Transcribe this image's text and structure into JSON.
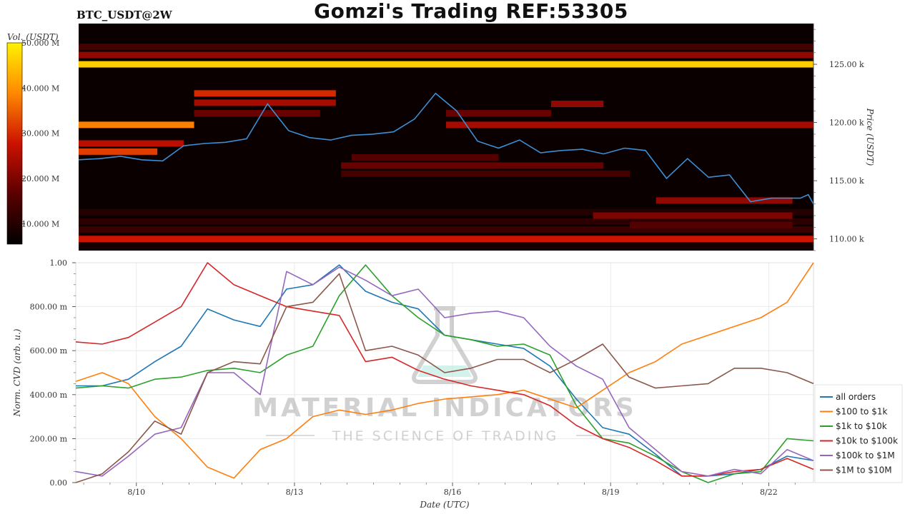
{
  "header": {
    "pair_label": "BTC_USDT@2W",
    "title": "Gomzi's Trading REF:53305"
  },
  "watermark": {
    "line1": "MATERIAL INDICATORS",
    "line2": "THE SCIENCE OF TRADING"
  },
  "colors": {
    "heatmap_bg": "#0a0000",
    "price_line": "#3b8fd6"
  },
  "chart_data": [
    {
      "type": "heatmap",
      "title": "",
      "colorbar": {
        "label": "Vol. (USDT)",
        "ticks": [
          {
            "value": 10,
            "label": "10.000 M"
          },
          {
            "value": 20,
            "label": "20.000 M"
          },
          {
            "value": 30,
            "label": "30.000 M"
          },
          {
            "value": 40,
            "label": "40.000 M"
          },
          {
            "value": 50,
            "label": "50.000 M"
          }
        ],
        "range": [
          5.5,
          50
        ]
      },
      "ylabel": "Price (USDT)",
      "ylim": [
        109,
        128.5
      ],
      "yticks": [
        {
          "value": 110,
          "label": "110.00 k"
        },
        {
          "value": 115,
          "label": "115.00 k"
        },
        {
          "value": 120,
          "label": "120.00 k"
        },
        {
          "value": 125,
          "label": "125.00 k"
        }
      ],
      "xlim": [
        0,
        14
      ],
      "price_series": {
        "x": [
          0,
          0.4,
          0.8,
          1.2,
          1.6,
          2.0,
          2.4,
          2.8,
          3.2,
          3.6,
          4.0,
          4.4,
          4.8,
          5.2,
          5.6,
          6.0,
          6.4,
          6.8,
          7.2,
          7.6,
          8.0,
          8.4,
          8.8,
          9.2,
          9.6,
          10.0,
          10.4,
          10.8,
          11.2,
          11.6,
          12.0,
          12.4,
          12.8,
          13.2,
          13.6,
          13.75,
          13.9,
          14.0
        ],
        "y": [
          116.8,
          116.9,
          117.1,
          116.8,
          116.7,
          118.0,
          118.2,
          118.3,
          118.6,
          121.6,
          119.3,
          118.7,
          118.5,
          118.9,
          119.0,
          119.2,
          120.3,
          122.5,
          121.0,
          118.4,
          117.8,
          118.5,
          117.4,
          117.6,
          117.7,
          117.3,
          117.8,
          117.6,
          115.2,
          116.9,
          115.3,
          115.5,
          113.2,
          113.5,
          113.5,
          113.5,
          113.8,
          113.0
        ]
      },
      "levels": [
        {
          "y": 125.0,
          "x0": 0,
          "x1": 14,
          "v": 46
        },
        {
          "y": 125.8,
          "x0": 0,
          "x1": 14,
          "v": 22
        },
        {
          "y": 126.5,
          "x0": 0,
          "x1": 14,
          "v": 14
        },
        {
          "y": 110.0,
          "x0": 0,
          "x1": 14,
          "v": 28
        },
        {
          "y": 110.8,
          "x0": 0,
          "x1": 14,
          "v": 13
        },
        {
          "y": 111.5,
          "x0": 0,
          "x1": 14,
          "v": 11
        },
        {
          "y": 112.3,
          "x0": 0,
          "x1": 14,
          "v": 10
        },
        {
          "y": 122.5,
          "x0": 2.2,
          "x1": 4.9,
          "v": 30
        },
        {
          "y": 121.7,
          "x0": 2.2,
          "x1": 4.9,
          "v": 24
        },
        {
          "y": 120.8,
          "x0": 2.2,
          "x1": 4.6,
          "v": 18
        },
        {
          "y": 119.8,
          "x0": 0,
          "x1": 2.2,
          "v": 38
        },
        {
          "y": 118.2,
          "x0": 0,
          "x1": 2.0,
          "v": 26
        },
        {
          "y": 117.5,
          "x0": 0,
          "x1": 1.5,
          "v": 32
        },
        {
          "y": 119.8,
          "x0": 7.0,
          "x1": 14,
          "v": 24
        },
        {
          "y": 120.8,
          "x0": 7.0,
          "x1": 9.0,
          "v": 18
        },
        {
          "y": 121.6,
          "x0": 9.0,
          "x1": 10.0,
          "v": 22
        },
        {
          "y": 116.3,
          "x0": 5.0,
          "x1": 10.0,
          "v": 18
        },
        {
          "y": 115.6,
          "x0": 5.0,
          "x1": 10.5,
          "v": 14
        },
        {
          "y": 117.0,
          "x0": 5.2,
          "x1": 8.0,
          "v": 16
        },
        {
          "y": 112.0,
          "x0": 9.8,
          "x1": 13.6,
          "v": 20
        },
        {
          "y": 111.2,
          "x0": 10.5,
          "x1": 13.6,
          "v": 16
        },
        {
          "y": 113.3,
          "x0": 11.0,
          "x1": 13.6,
          "v": 22
        },
        {
          "y": 109.4,
          "x0": 0,
          "x1": 14,
          "v": 8
        }
      ]
    },
    {
      "type": "line",
      "title": "",
      "xlabel": "Date (UTC)",
      "ylabel": "Norm. CVD (arb. u.)",
      "ylim": [
        0,
        1
      ],
      "xlim": [
        0,
        14
      ],
      "yticks": [
        {
          "value": 0,
          "label": "0.00"
        },
        {
          "value": 0.2,
          "label": "200.00 m"
        },
        {
          "value": 0.4,
          "label": "400.00 m"
        },
        {
          "value": 0.6,
          "label": "600.00 m"
        },
        {
          "value": 0.8,
          "label": "800.00 m"
        },
        {
          "value": 1.0,
          "label": "1.00"
        }
      ],
      "xticks": [
        {
          "value": 1.15,
          "label": "8/10"
        },
        {
          "value": 4.15,
          "label": "8/13"
        },
        {
          "value": 7.15,
          "label": "8/16"
        },
        {
          "value": 10.15,
          "label": "8/19"
        },
        {
          "value": 13.15,
          "label": "8/22"
        }
      ],
      "x": [
        0,
        0.5,
        1.0,
        1.5,
        2.0,
        2.5,
        3.0,
        3.5,
        4.0,
        4.5,
        5.0,
        5.5,
        6.0,
        6.5,
        7.0,
        7.5,
        8.0,
        8.5,
        9.0,
        9.5,
        10.0,
        10.5,
        11.0,
        11.5,
        12.0,
        12.5,
        13.0,
        13.5,
        14.0
      ],
      "series": [
        {
          "name": "all orders",
          "color": "#1f77b4",
          "values": [
            0.44,
            0.44,
            0.47,
            0.55,
            0.62,
            0.79,
            0.74,
            0.71,
            0.88,
            0.9,
            0.99,
            0.87,
            0.82,
            0.79,
            0.67,
            0.65,
            0.63,
            0.61,
            0.53,
            0.38,
            0.25,
            0.22,
            0.13,
            0.03,
            0.03,
            0.04,
            0.06,
            0.12,
            0.1
          ]
        },
        {
          "name": "$100 to $1k",
          "color": "#ff7f0e",
          "values": [
            0.46,
            0.5,
            0.45,
            0.3,
            0.2,
            0.07,
            0.02,
            0.15,
            0.2,
            0.3,
            0.33,
            0.31,
            0.33,
            0.36,
            0.38,
            0.39,
            0.4,
            0.42,
            0.38,
            0.34,
            0.42,
            0.5,
            0.55,
            0.63,
            0.67,
            0.71,
            0.75,
            0.82,
            1.0
          ]
        },
        {
          "name": "$1k to $10k",
          "color": "#2ca02c",
          "values": [
            0.43,
            0.44,
            0.43,
            0.47,
            0.48,
            0.51,
            0.52,
            0.5,
            0.58,
            0.62,
            0.85,
            0.99,
            0.85,
            0.75,
            0.67,
            0.65,
            0.62,
            0.63,
            0.58,
            0.35,
            0.2,
            0.18,
            0.12,
            0.05,
            0.0,
            0.04,
            0.05,
            0.2,
            0.19
          ]
        },
        {
          "name": "$10k to $100k",
          "color": "#d62728",
          "values": [
            0.64,
            0.63,
            0.66,
            0.73,
            0.8,
            1.0,
            0.9,
            0.85,
            0.8,
            0.78,
            0.76,
            0.55,
            0.57,
            0.51,
            0.47,
            0.44,
            0.42,
            0.4,
            0.35,
            0.26,
            0.2,
            0.16,
            0.1,
            0.03,
            0.03,
            0.05,
            0.06,
            0.11,
            0.06
          ]
        },
        {
          "name": "$100k to $1M",
          "color": "#9467bd",
          "values": [
            0.05,
            0.03,
            0.12,
            0.22,
            0.25,
            0.5,
            0.5,
            0.4,
            0.96,
            0.9,
            0.98,
            0.92,
            0.85,
            0.88,
            0.75,
            0.77,
            0.78,
            0.75,
            0.62,
            0.53,
            0.47,
            0.25,
            0.15,
            0.05,
            0.03,
            0.06,
            0.04,
            0.15,
            0.1
          ]
        },
        {
          "name": "$1M to $10M",
          "color": "#8c564b",
          "values": [
            0.0,
            0.04,
            0.14,
            0.28,
            0.22,
            0.5,
            0.55,
            0.54,
            0.8,
            0.82,
            0.95,
            0.6,
            0.62,
            0.58,
            0.5,
            0.52,
            0.56,
            0.56,
            0.5,
            0.56,
            0.63,
            0.48,
            0.43,
            0.44,
            0.45,
            0.52,
            0.52,
            0.5,
            0.45
          ]
        }
      ],
      "legend_position": "bottom-right"
    }
  ]
}
